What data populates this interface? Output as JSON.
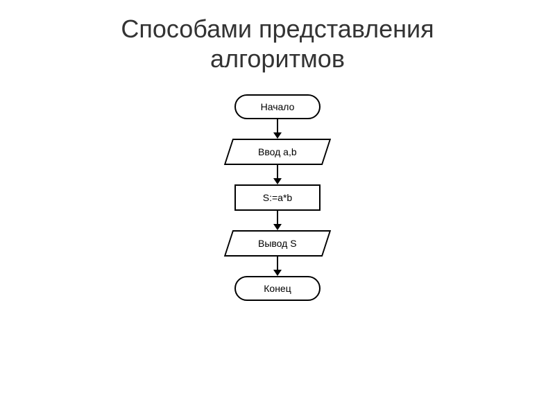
{
  "title": {
    "line1": "Способами представления",
    "line2": "алгоритмов"
  },
  "flowchart": {
    "type": "flowchart",
    "stroke_color": "#000000",
    "background_color": "#ffffff",
    "node_fontsize": 14,
    "title_fontsize": 36,
    "title_color": "#333333",
    "nodes": [
      {
        "id": "start",
        "shape": "terminal",
        "label": "Начало"
      },
      {
        "id": "input",
        "shape": "parallelogram",
        "label": "Ввод a,b"
      },
      {
        "id": "process",
        "shape": "process",
        "label": "S:=a*b"
      },
      {
        "id": "output",
        "shape": "parallelogram",
        "label": "Вывод  S"
      },
      {
        "id": "end",
        "shape": "terminal",
        "label": "Конец"
      }
    ],
    "edges": [
      {
        "from": "start",
        "to": "input"
      },
      {
        "from": "input",
        "to": "process"
      },
      {
        "from": "process",
        "to": "output"
      },
      {
        "from": "output",
        "to": "end"
      }
    ]
  }
}
